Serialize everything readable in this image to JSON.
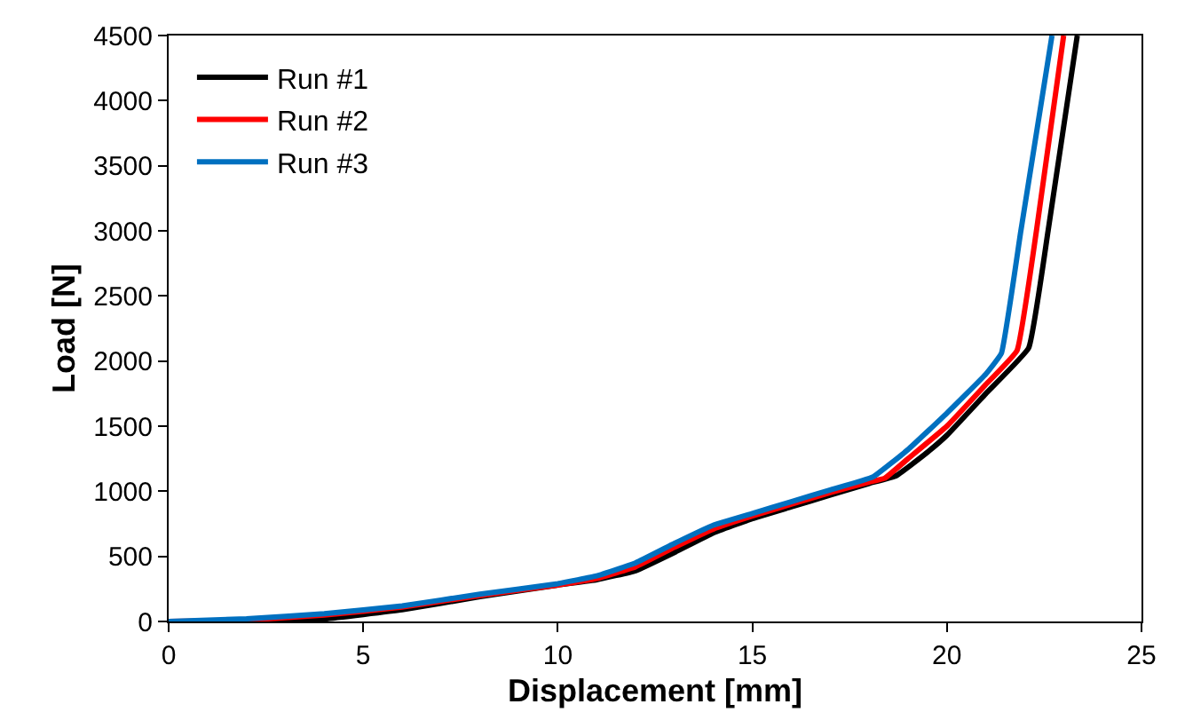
{
  "chart_data": {
    "type": "line",
    "xlabel": "Displacement [mm]",
    "ylabel": "Load [N]",
    "xlim": [
      0,
      25
    ],
    "xticks": [
      0,
      5,
      10,
      15,
      20,
      25
    ],
    "ylim": [
      0,
      4500
    ],
    "yticks": [
      0,
      500,
      1000,
      1500,
      2000,
      2500,
      3000,
      3500,
      4000,
      4500
    ],
    "legend": "top left",
    "marker": "none",
    "line_style": "solid",
    "series": [
      {
        "name": "Run #1",
        "color": "#000000",
        "x": [
          0,
          2,
          4,
          6,
          8,
          10,
          11,
          12,
          13,
          14,
          15,
          16,
          17,
          18,
          18.7,
          19.5,
          20,
          21,
          22.1,
          22.6,
          23.35
        ],
        "values": [
          0,
          0,
          20,
          90,
          190,
          280,
          320,
          390,
          530,
          680,
          790,
          880,
          970,
          1060,
          1120,
          1300,
          1430,
          1750,
          2100,
          3000,
          4500
        ]
      },
      {
        "name": "Run #2",
        "color": "#ff0000",
        "x": [
          0,
          2,
          4,
          6,
          8,
          10,
          11,
          12,
          13,
          14,
          15,
          16,
          17,
          18,
          18.4,
          19,
          20,
          21,
          21.8,
          22.3,
          23.0
        ],
        "values": [
          0,
          10,
          50,
          110,
          200,
          280,
          330,
          420,
          570,
          710,
          810,
          900,
          990,
          1070,
          1100,
          1250,
          1500,
          1820,
          2080,
          3000,
          4500
        ]
      },
      {
        "name": "Run #3",
        "color": "#0070c0",
        "x": [
          0,
          2,
          4,
          6,
          8,
          10,
          11,
          12,
          13,
          14,
          15,
          16,
          17,
          18.1,
          19,
          20,
          21,
          21.4,
          21.9,
          22.7
        ],
        "values": [
          0,
          20,
          60,
          120,
          210,
          290,
          350,
          450,
          600,
          740,
          830,
          920,
          1010,
          1110,
          1320,
          1600,
          1900,
          2060,
          3000,
          4500
        ]
      }
    ]
  }
}
